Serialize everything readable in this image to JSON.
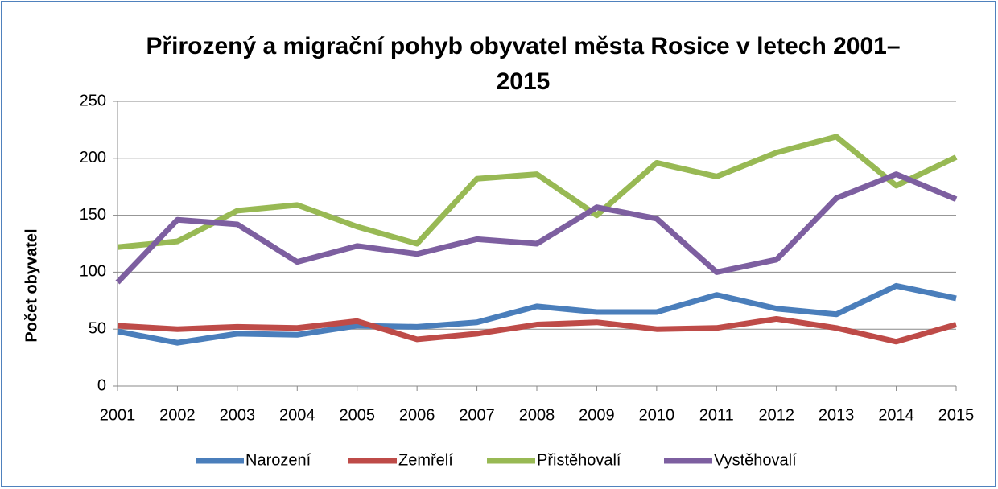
{
  "chart_data": {
    "type": "line",
    "title": "Přirozený a migrační pohyb obyvatel města Rosice v letech 2001–2015",
    "ylabel": "Počet obyvatel",
    "categories": [
      "2001",
      "2002",
      "2003",
      "2004",
      "2005",
      "2006",
      "2007",
      "2008",
      "2009",
      "2010",
      "2011",
      "2012",
      "2013",
      "2014",
      "2015"
    ],
    "series": [
      {
        "name": "Narození",
        "color": "#4a7ebb",
        "values": [
          48,
          38,
          46,
          45,
          53,
          52,
          56,
          70,
          65,
          65,
          80,
          68,
          63,
          88,
          77
        ]
      },
      {
        "name": "Zemřelí",
        "color": "#be4b48",
        "values": [
          53,
          50,
          52,
          51,
          57,
          41,
          46,
          54,
          56,
          50,
          51,
          59,
          51,
          39,
          54
        ]
      },
      {
        "name": "Přistěhovalí",
        "color": "#98b954",
        "values": [
          122,
          127,
          154,
          159,
          140,
          125,
          182,
          186,
          150,
          196,
          184,
          205,
          219,
          176,
          201
        ]
      },
      {
        "name": "Vystěhovalí",
        "color": "#7d5fa0",
        "values": [
          91,
          146,
          142,
          109,
          123,
          116,
          129,
          125,
          157,
          147,
          100,
          111,
          165,
          186,
          164
        ]
      }
    ],
    "ylim": [
      0,
      250
    ],
    "yticks": [
      0,
      50,
      100,
      150,
      200,
      250
    ],
    "grid": true,
    "legend": "bottom"
  }
}
